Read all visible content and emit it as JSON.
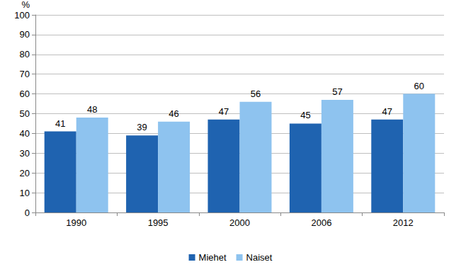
{
  "chart_data": {
    "type": "bar",
    "ylabel": "%",
    "categories": [
      "1990",
      "1995",
      "2000",
      "2006",
      "2012"
    ],
    "series": [
      {
        "name": "Miehet",
        "color": "#1f63b0",
        "values": [
          41,
          39,
          47,
          45,
          47
        ]
      },
      {
        "name": "Naiset",
        "color": "#8ec3ef",
        "values": [
          48,
          46,
          56,
          57,
          60
        ]
      }
    ],
    "ylim": [
      0,
      100
    ],
    "yticks": [
      0,
      10,
      20,
      30,
      40,
      50,
      60,
      70,
      80,
      90,
      100
    ],
    "grid": true,
    "legend": "bottom",
    "data_labels": true
  }
}
